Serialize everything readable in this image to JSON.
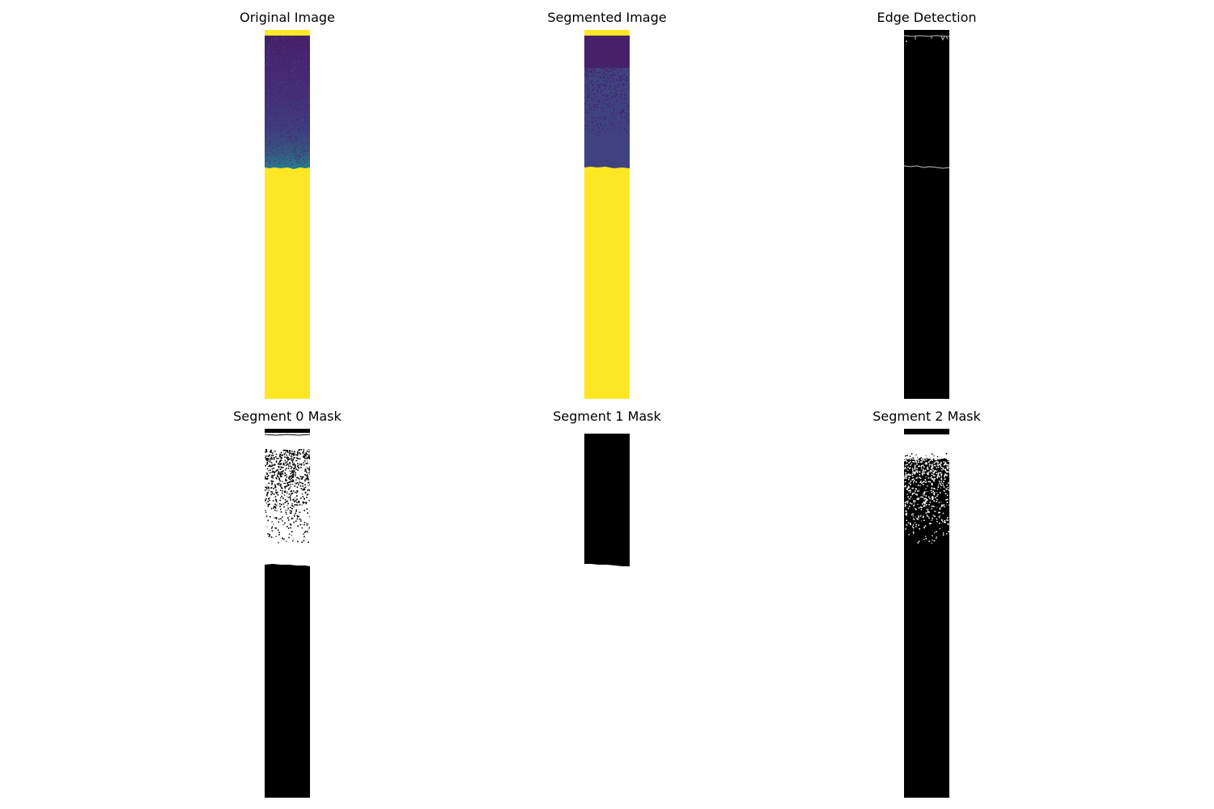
{
  "figure": {
    "panels": [
      {
        "title": "Original Image",
        "kind": "viridis-original"
      },
      {
        "title": "Segmented Image",
        "kind": "viridis-segmented"
      },
      {
        "title": "Edge Detection",
        "kind": "edge-map"
      },
      {
        "title": "Segment 0 Mask",
        "kind": "binary-mask"
      },
      {
        "title": "Segment 1 Mask",
        "kind": "binary-mask"
      },
      {
        "title": "Segment 2 Mask",
        "kind": "binary-mask"
      }
    ]
  },
  "colors": {
    "viridis_yellow": "#fde725",
    "viridis_dark_purple": "#46216a",
    "viridis_purple": "#452b73",
    "viridis_indigo": "#40427f",
    "viridis_teal": "#2a7c8e",
    "mask_black": "#000000",
    "mask_white": "#ffffff",
    "edge_gray": "#bdbdbd"
  }
}
